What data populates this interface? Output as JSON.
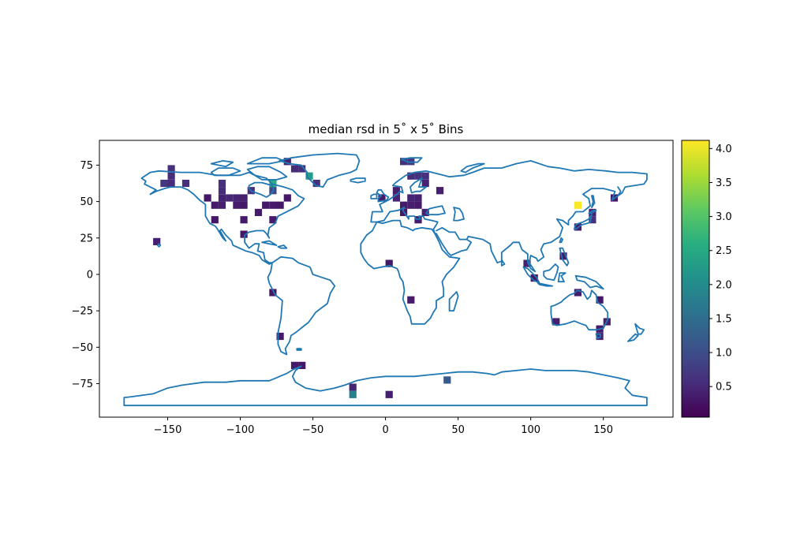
{
  "chart_data": {
    "type": "heatmap",
    "title": "median rsd in 5˚ x 5˚ Bins",
    "xlim": [
      -197,
      198
    ],
    "ylim": [
      -98,
      92
    ],
    "xticks": [
      -150,
      -100,
      -50,
      0,
      50,
      100,
      150
    ],
    "yticks": [
      -75,
      -50,
      -25,
      0,
      25,
      50,
      75
    ],
    "bin_size_deg": 5,
    "colormap": "viridis",
    "color_range": [
      0.05,
      4.12
    ],
    "colorbar_ticks": [
      0.5,
      1.0,
      1.5,
      2.0,
      2.5,
      3.0,
      3.5,
      4.0
    ],
    "colorbar_tick_labels": [
      "0.5",
      "1.0",
      "1.5",
      "2.0",
      "2.5",
      "3.0",
      "3.5",
      "4.0"
    ],
    "coastline_color": "#1f77b4",
    "grid": false,
    "bins": [
      {
        "lon": -147.5,
        "lat": 72.5,
        "v": 0.6
      },
      {
        "lon": -147.5,
        "lat": 67.5,
        "v": 0.55
      },
      {
        "lon": -152.5,
        "lat": 62.5,
        "v": 0.7
      },
      {
        "lon": -147.5,
        "lat": 62.5,
        "v": 0.55
      },
      {
        "lon": -137.5,
        "lat": 62.5,
        "v": 0.6
      },
      {
        "lon": -157.5,
        "lat": 22.5,
        "v": 0.4
      },
      {
        "lon": -122.5,
        "lat": 52.5,
        "v": 0.3
      },
      {
        "lon": -117.5,
        "lat": 47.5,
        "v": 0.35
      },
      {
        "lon": -112.5,
        "lat": 47.5,
        "v": 0.4
      },
      {
        "lon": -112.5,
        "lat": 52.5,
        "v": 0.45
      },
      {
        "lon": -112.5,
        "lat": 57.5,
        "v": 0.55
      },
      {
        "lon": -112.5,
        "lat": 62.5,
        "v": 0.6
      },
      {
        "lon": -107.5,
        "lat": 52.5,
        "v": 0.5
      },
      {
        "lon": -102.5,
        "lat": 52.5,
        "v": 0.45
      },
      {
        "lon": -102.5,
        "lat": 47.5,
        "v": 0.35
      },
      {
        "lon": -97.5,
        "lat": 52.5,
        "v": 0.4
      },
      {
        "lon": -97.5,
        "lat": 47.5,
        "v": 0.3
      },
      {
        "lon": -117.5,
        "lat": 37.5,
        "v": 0.3
      },
      {
        "lon": -97.5,
        "lat": 37.5,
        "v": 0.35
      },
      {
        "lon": -97.5,
        "lat": 27.5,
        "v": 0.3
      },
      {
        "lon": -92.5,
        "lat": 57.5,
        "v": 0.6
      },
      {
        "lon": -87.5,
        "lat": 42.5,
        "v": 0.35
      },
      {
        "lon": -82.5,
        "lat": 47.5,
        "v": 0.3
      },
      {
        "lon": -77.5,
        "lat": 47.5,
        "v": 0.35
      },
      {
        "lon": -72.5,
        "lat": 47.5,
        "v": 0.3
      },
      {
        "lon": -77.5,
        "lat": 37.5,
        "v": 0.35
      },
      {
        "lon": -77.5,
        "lat": 57.5,
        "v": 0.9
      },
      {
        "lon": -77.5,
        "lat": 62.5,
        "v": 2.6
      },
      {
        "lon": -67.5,
        "lat": 77.5,
        "v": 0.4
      },
      {
        "lon": -62.5,
        "lat": 72.5,
        "v": 0.55
      },
      {
        "lon": -57.5,
        "lat": 72.5,
        "v": 0.6
      },
      {
        "lon": -52.5,
        "lat": 67.5,
        "v": 2.3
      },
      {
        "lon": -47.5,
        "lat": 62.5,
        "v": 0.6
      },
      {
        "lon": -67.5,
        "lat": 52.5,
        "v": 0.3
      },
      {
        "lon": -77.5,
        "lat": -12.5,
        "v": 0.3
      },
      {
        "lon": -72.5,
        "lat": -42.5,
        "v": 0.35
      },
      {
        "lon": -62.5,
        "lat": -62.5,
        "v": 0.35
      },
      {
        "lon": -57.5,
        "lat": -62.5,
        "v": 0.3
      },
      {
        "lon": -22.5,
        "lat": -77.5,
        "v": 0.45
      },
      {
        "lon": -22.5,
        "lat": -82.5,
        "v": 1.8
      },
      {
        "lon": 2.5,
        "lat": -82.5,
        "v": 0.4
      },
      {
        "lon": 42.5,
        "lat": -72.5,
        "v": 1.2
      },
      {
        "lon": -2.5,
        "lat": 52.5,
        "v": 0.35
      },
      {
        "lon": 7.5,
        "lat": 57.5,
        "v": 0.4
      },
      {
        "lon": 7.5,
        "lat": 52.5,
        "v": 0.45
      },
      {
        "lon": 12.5,
        "lat": 77.5,
        "v": 0.6
      },
      {
        "lon": 17.5,
        "lat": 77.5,
        "v": 0.7
      },
      {
        "lon": 12.5,
        "lat": 47.5,
        "v": 0.35
      },
      {
        "lon": 12.5,
        "lat": 42.5,
        "v": 0.3
      },
      {
        "lon": 17.5,
        "lat": 47.5,
        "v": 0.4
      },
      {
        "lon": 17.5,
        "lat": 52.5,
        "v": 0.45
      },
      {
        "lon": 22.5,
        "lat": 47.5,
        "v": 0.35
      },
      {
        "lon": 22.5,
        "lat": 52.5,
        "v": 0.4
      },
      {
        "lon": 22.5,
        "lat": 67.5,
        "v": 0.65
      },
      {
        "lon": 17.5,
        "lat": 67.5,
        "v": 0.55
      },
      {
        "lon": 27.5,
        "lat": 67.5,
        "v": 0.6
      },
      {
        "lon": 27.5,
        "lat": 62.5,
        "v": 0.45
      },
      {
        "lon": 27.5,
        "lat": 42.5,
        "v": 0.45
      },
      {
        "lon": 22.5,
        "lat": 37.5,
        "v": 0.35
      },
      {
        "lon": 37.5,
        "lat": 57.5,
        "v": 0.4
      },
      {
        "lon": 2.5,
        "lat": 7.5,
        "v": 0.3
      },
      {
        "lon": 17.5,
        "lat": -17.5,
        "v": 0.35
      },
      {
        "lon": 97.5,
        "lat": 7.5,
        "v": 0.4
      },
      {
        "lon": 102.5,
        "lat": -2.5,
        "v": 0.3
      },
      {
        "lon": 117.5,
        "lat": -32.5,
        "v": 0.4
      },
      {
        "lon": 122.5,
        "lat": 12.5,
        "v": 0.3
      },
      {
        "lon": 132.5,
        "lat": 47.5,
        "v": 4.1
      },
      {
        "lon": 132.5,
        "lat": 32.5,
        "v": 0.35
      },
      {
        "lon": 142.5,
        "lat": 42.5,
        "v": 0.4
      },
      {
        "lon": 142.5,
        "lat": 37.5,
        "v": 0.6
      },
      {
        "lon": 157.5,
        "lat": 52.5,
        "v": 0.3
      },
      {
        "lon": 132.5,
        "lat": -12.5,
        "v": 0.35
      },
      {
        "lon": 147.5,
        "lat": -17.5,
        "v": 0.3
      },
      {
        "lon": 147.5,
        "lat": -37.5,
        "v": 0.35
      },
      {
        "lon": 147.5,
        "lat": -42.5,
        "v": 0.45
      },
      {
        "lon": 152.5,
        "lat": -32.5,
        "v": 0.4
      }
    ]
  }
}
